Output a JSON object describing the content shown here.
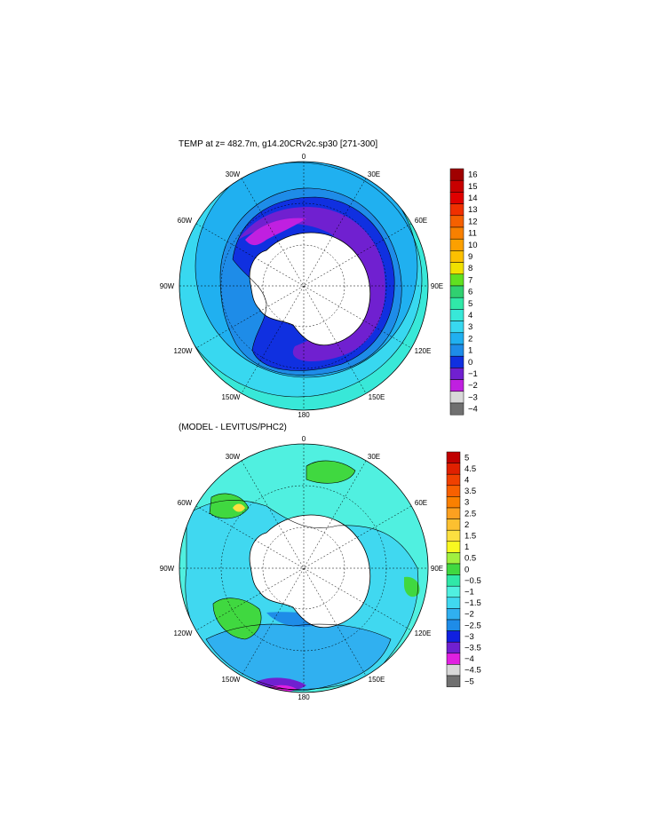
{
  "panels": [
    {
      "title": "TEMP at z= 482.7m, g14.20CRv2c.sp30 [271-300]",
      "longitude_labels": [
        "0",
        "30E",
        "60E",
        "90E",
        "120E",
        "150E",
        "180",
        "150W",
        "120W",
        "90W",
        "60W",
        "30W"
      ],
      "colorbar": {
        "labels": [
          "16",
          "15",
          "14",
          "13",
          "12",
          "11",
          "10",
          "9",
          "8",
          "7",
          "6",
          "5",
          "4",
          "3",
          "2",
          "1",
          "0",
          "−1",
          "−2",
          "−3",
          "−4"
        ],
        "colors": [
          "#a00000",
          "#c80000",
          "#e00000",
          "#f03000",
          "#f56000",
          "#f88000",
          "#fba000",
          "#fcc000",
          "#f0e000",
          "#60e020",
          "#30d070",
          "#30e8a8",
          "#38e8d8",
          "#38d8f0",
          "#20b0f0",
          "#1e8ce8",
          "#1030e0",
          "#7020d0",
          "#c020e0",
          "#d8d8d8",
          "#707070"
        ]
      }
    },
    {
      "title": "(MODEL - LEVITUS/PHC2)",
      "longitude_labels": [
        "0",
        "30E",
        "60E",
        "90E",
        "120E",
        "150E",
        "180",
        "150W",
        "120W",
        "90W",
        "60W",
        "30W"
      ],
      "colorbar": {
        "labels": [
          "5",
          "4.5",
          "4",
          "3.5",
          "3",
          "2.5",
          "2",
          "1.5",
          "1",
          "0.5",
          "0",
          "−0.5",
          "−1",
          "−1.5",
          "−2",
          "−2.5",
          "−3",
          "−3.5",
          "−4",
          "−4.5",
          "−5"
        ],
        "colors": [
          "#c00000",
          "#e02000",
          "#f04000",
          "#f86000",
          "#fa8000",
          "#fca020",
          "#fcc030",
          "#fce040",
          "#f8f820",
          "#a0f040",
          "#40d840",
          "#30e8a8",
          "#50f0e0",
          "#40d8f0",
          "#30b0f0",
          "#1e8ce8",
          "#1020e0",
          "#7020d0",
          "#e020e0",
          "#d8d8d8",
          "#707070"
        ]
      }
    }
  ]
}
